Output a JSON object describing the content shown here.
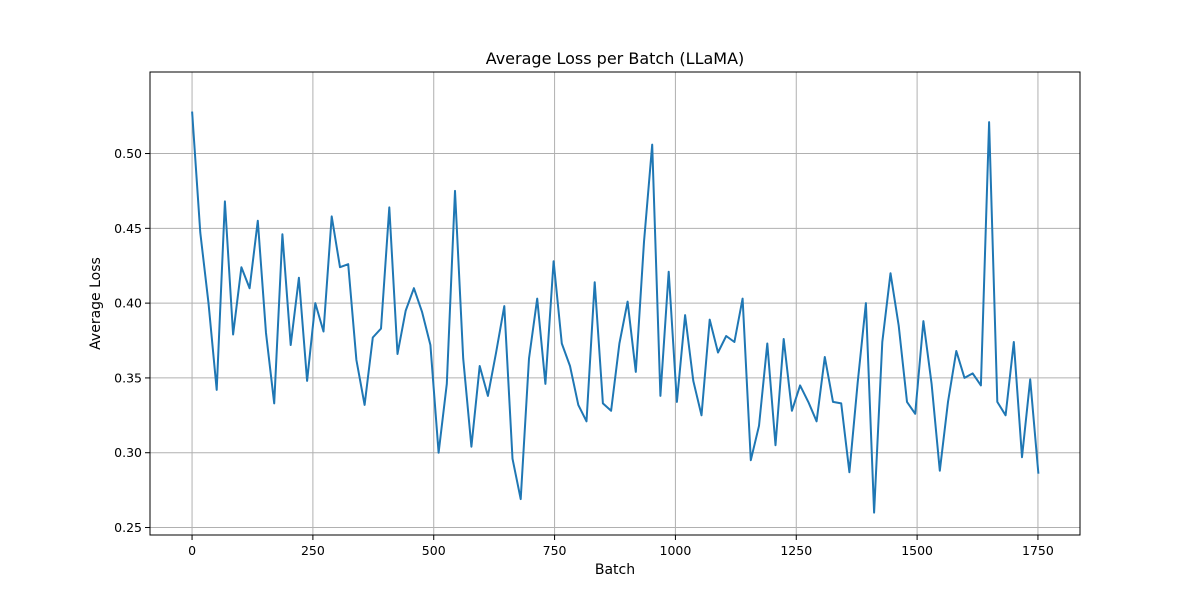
{
  "chart_data": {
    "type": "line",
    "title": "Average Loss per Batch (LLaMA)",
    "xlabel": "Batch",
    "ylabel": "Average Loss",
    "xlim": [
      -87,
      1837
    ],
    "ylim": [
      0.245,
      0.5545
    ],
    "xticks": [
      0,
      250,
      500,
      750,
      1000,
      1250,
      1500,
      1750
    ],
    "yticks": [
      0.25,
      0.3,
      0.35,
      0.4,
      0.45,
      0.5
    ],
    "xtick_labels": [
      "0",
      "250",
      "500",
      "750",
      "1000",
      "1250",
      "1500",
      "1750"
    ],
    "ytick_labels": [
      "0.25",
      "0.30",
      "0.35",
      "0.40",
      "0.45",
      "0.50"
    ],
    "grid": true,
    "series_color": "#1f77b4",
    "series": [
      {
        "x": [
          0,
          17,
          34,
          51,
          68,
          85,
          102,
          119,
          136,
          153,
          170,
          187,
          204,
          221,
          238,
          255,
          272,
          289,
          306,
          323,
          340,
          357,
          374,
          391,
          408,
          425,
          442,
          459,
          476,
          493,
          510,
          527,
          544,
          561,
          578,
          595,
          612,
          629,
          646,
          663,
          680,
          697,
          714,
          731,
          748,
          765,
          782,
          799,
          816,
          833,
          850,
          867,
          884,
          901,
          918,
          935,
          952,
          969,
          986,
          1003,
          1020,
          1037,
          1054,
          1071,
          1088,
          1105,
          1122,
          1139,
          1156,
          1173,
          1190,
          1207,
          1224,
          1241,
          1258,
          1275,
          1292,
          1309,
          1326,
          1343,
          1360,
          1377,
          1394,
          1411,
          1428,
          1445,
          1462,
          1479,
          1496,
          1513,
          1530,
          1547,
          1564,
          1581,
          1598,
          1615,
          1632,
          1649,
          1666,
          1683,
          1700,
          1717,
          1734,
          1751
        ],
        "values": [
          0.528,
          0.447,
          0.4,
          0.342,
          0.468,
          0.379,
          0.424,
          0.41,
          0.455,
          0.38,
          0.333,
          0.446,
          0.372,
          0.417,
          0.348,
          0.4,
          0.381,
          0.458,
          0.424,
          0.426,
          0.362,
          0.332,
          0.377,
          0.383,
          0.464,
          0.366,
          0.395,
          0.41,
          0.394,
          0.372,
          0.3,
          0.346,
          0.475,
          0.363,
          0.304,
          0.358,
          0.338,
          0.367,
          0.398,
          0.296,
          0.269,
          0.363,
          0.403,
          0.346,
          0.428,
          0.373,
          0.358,
          0.332,
          0.321,
          0.414,
          0.333,
          0.328,
          0.373,
          0.401,
          0.354,
          0.441,
          0.506,
          0.338,
          0.421,
          0.334,
          0.392,
          0.348,
          0.325,
          0.389,
          0.367,
          0.378,
          0.374,
          0.403,
          0.295,
          0.318,
          0.373,
          0.305,
          0.376,
          0.328,
          0.345,
          0.334,
          0.321,
          0.364,
          0.334,
          0.333,
          0.287,
          0.347,
          0.4,
          0.26,
          0.374,
          0.42,
          0.385,
          0.334,
          0.326,
          0.388,
          0.346,
          0.288,
          0.334,
          0.368,
          0.35,
          0.353,
          0.345,
          0.521,
          0.334,
          0.325,
          0.374,
          0.297,
          0.349,
          0.286
        ]
      }
    ]
  }
}
